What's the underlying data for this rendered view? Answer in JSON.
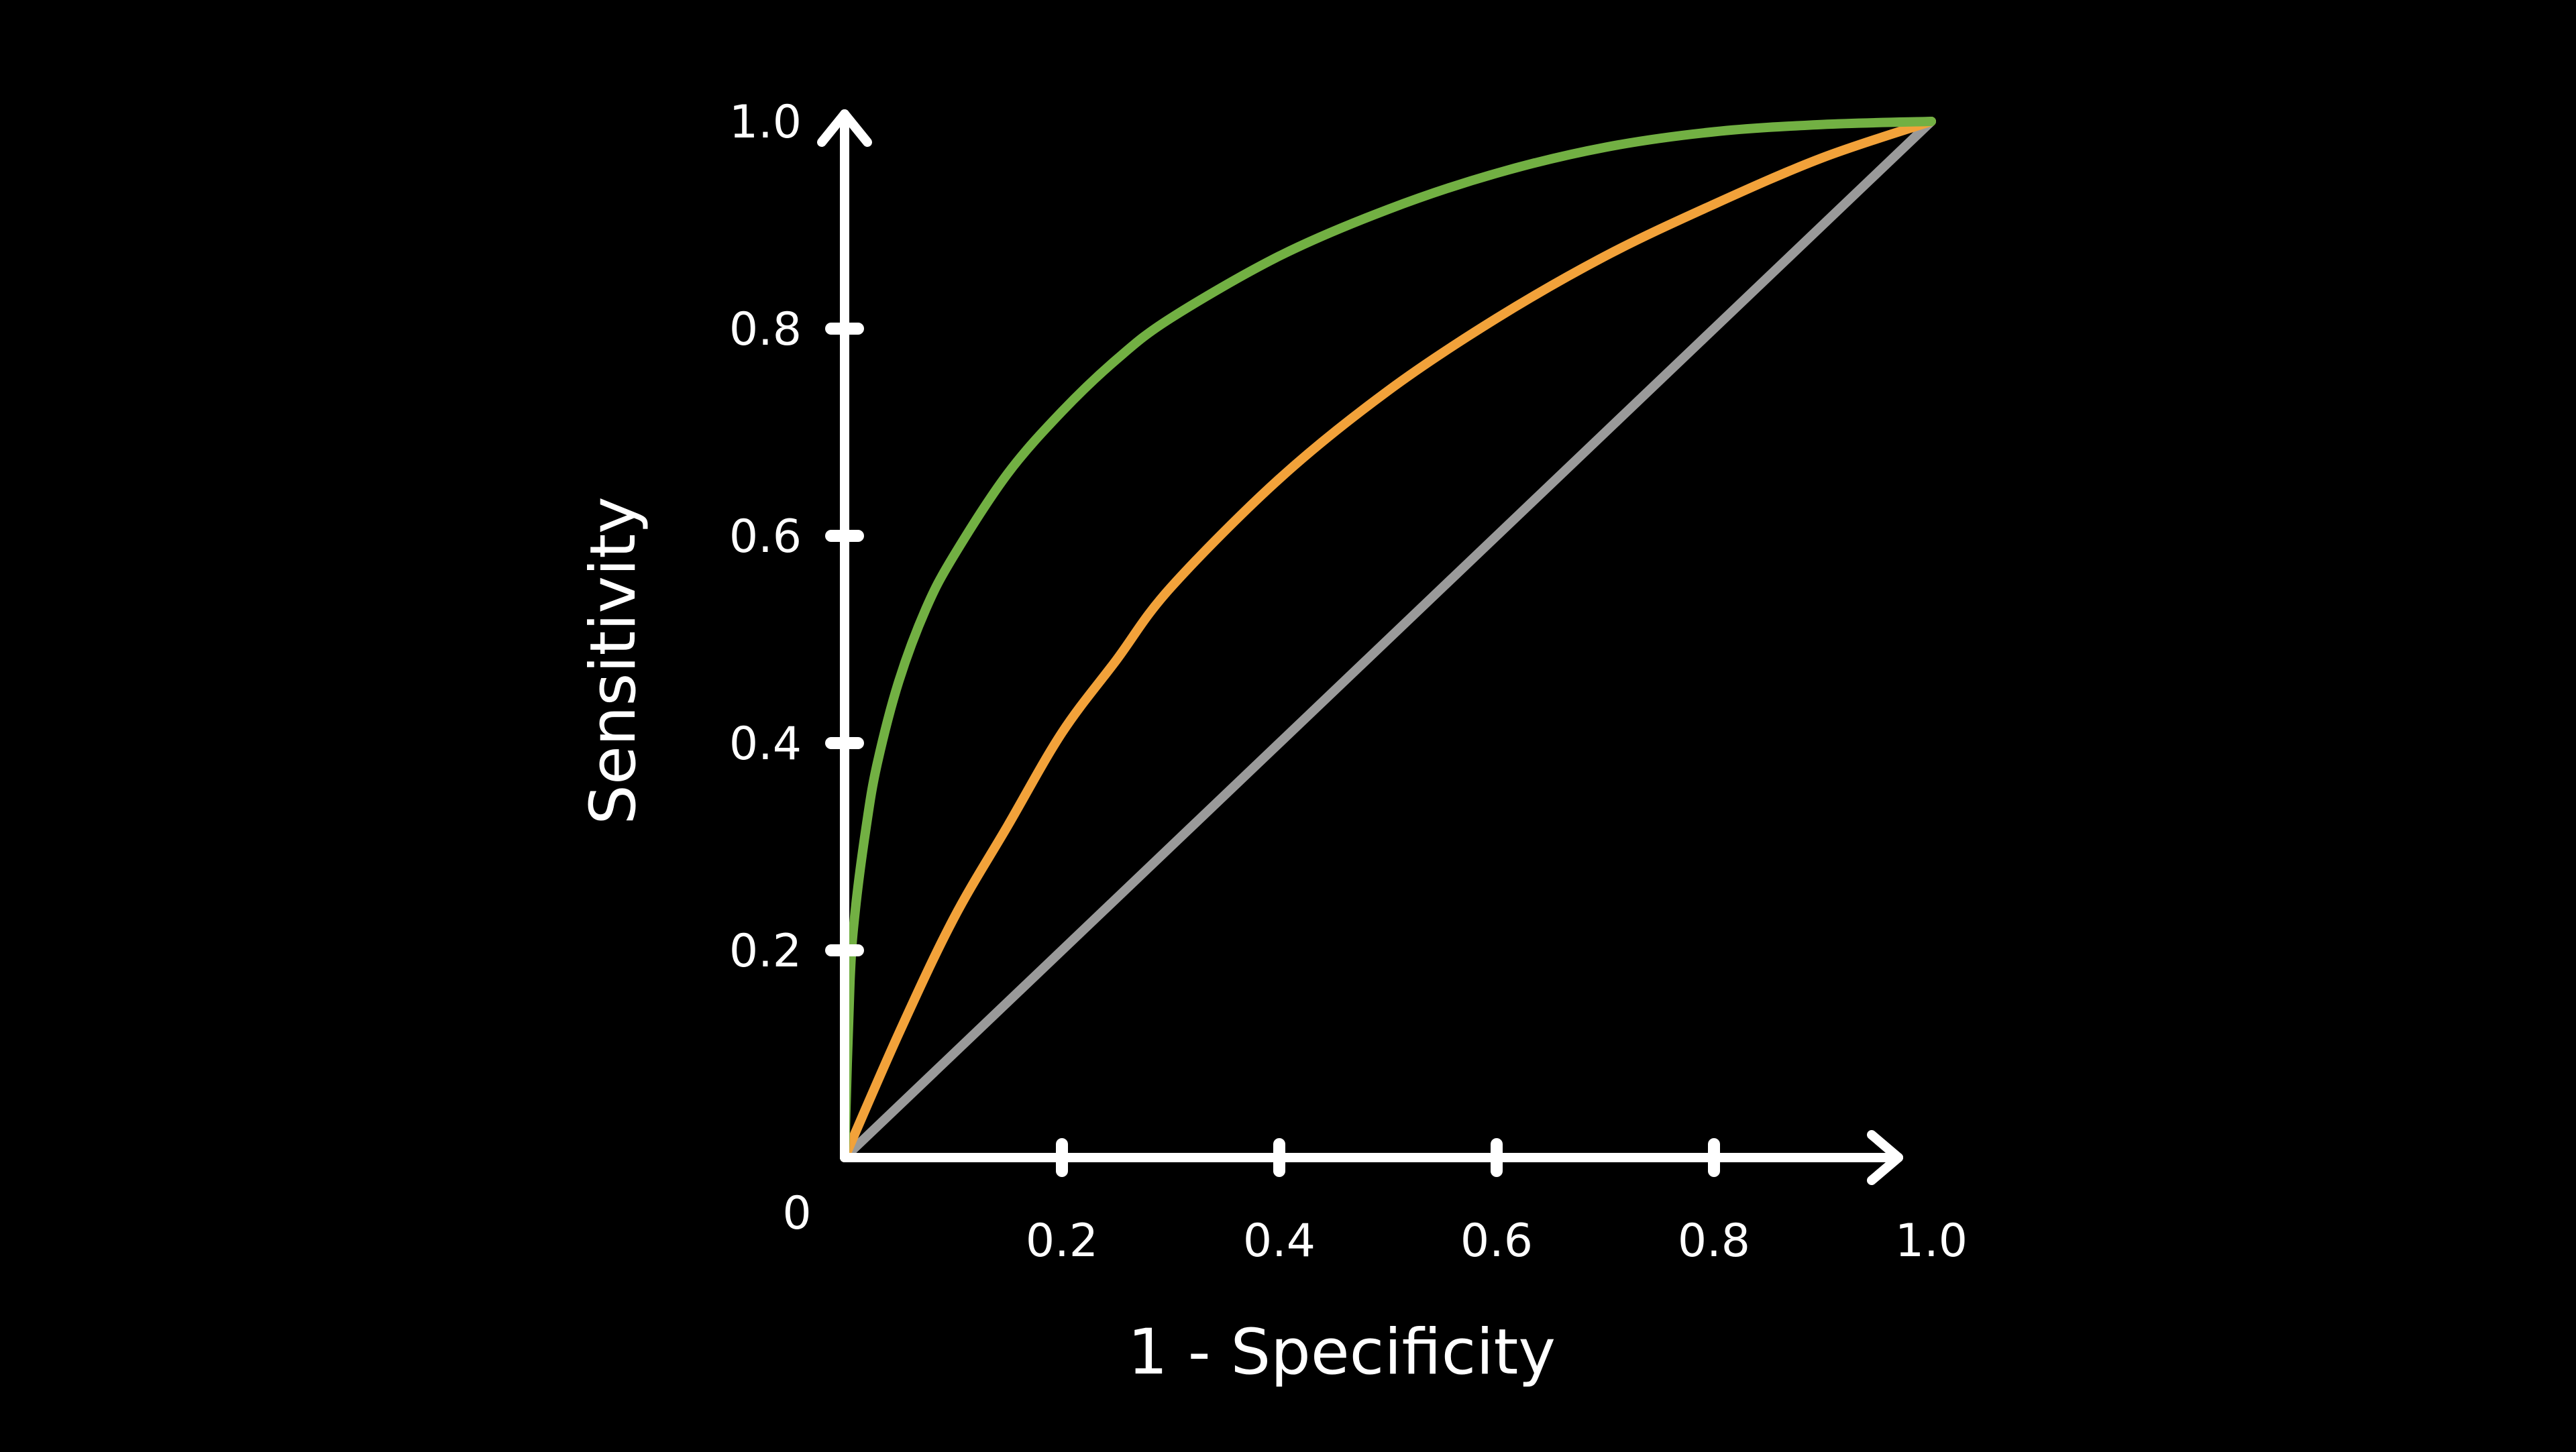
{
  "chart_data": {
    "type": "line",
    "title": "",
    "xlabel": "1 - Specificity",
    "ylabel": "Sensitivity",
    "xlim": [
      0,
      1.0
    ],
    "ylim": [
      0,
      1.0
    ],
    "origin_label": "0",
    "x_ticks": [
      0.2,
      0.4,
      0.6,
      0.8,
      1.0
    ],
    "x_tick_labels": [
      "0.2",
      "0.4",
      "0.6",
      "0.8",
      "1.0"
    ],
    "y_ticks": [
      0.2,
      0.4,
      0.6,
      0.8,
      1.0
    ],
    "y_tick_labels": [
      "0.2",
      "0.4",
      "0.6",
      "0.8",
      "1.0"
    ],
    "grid": false,
    "legend": "none",
    "axis_color": "#ffffff",
    "background": "#000000",
    "series": [
      {
        "color": "#72b043",
        "x": [
          0,
          0.005,
          0.01,
          0.02,
          0.03,
          0.05,
          0.075,
          0.1,
          0.15,
          0.2,
          0.25,
          0.3,
          0.4,
          0.5,
          0.6,
          0.7,
          0.8,
          0.9,
          1.0
        ],
        "y": [
          0,
          0.17,
          0.24,
          0.32,
          0.38,
          0.46,
          0.53,
          0.58,
          0.66,
          0.72,
          0.77,
          0.81,
          0.87,
          0.915,
          0.95,
          0.975,
          0.99,
          0.997,
          1.0
        ]
      },
      {
        "color": "#f2a23a",
        "x": [
          0,
          0.05,
          0.1,
          0.15,
          0.2,
          0.25,
          0.3,
          0.4,
          0.5,
          0.6,
          0.7,
          0.8,
          0.9,
          1.0
        ],
        "y": [
          0,
          0.12,
          0.23,
          0.32,
          0.41,
          0.48,
          0.55,
          0.655,
          0.74,
          0.81,
          0.87,
          0.92,
          0.965,
          1.0
        ]
      },
      {
        "color": "#9a9a9a",
        "x": [
          0,
          1.0
        ],
        "y": [
          0,
          1.0
        ]
      }
    ]
  }
}
